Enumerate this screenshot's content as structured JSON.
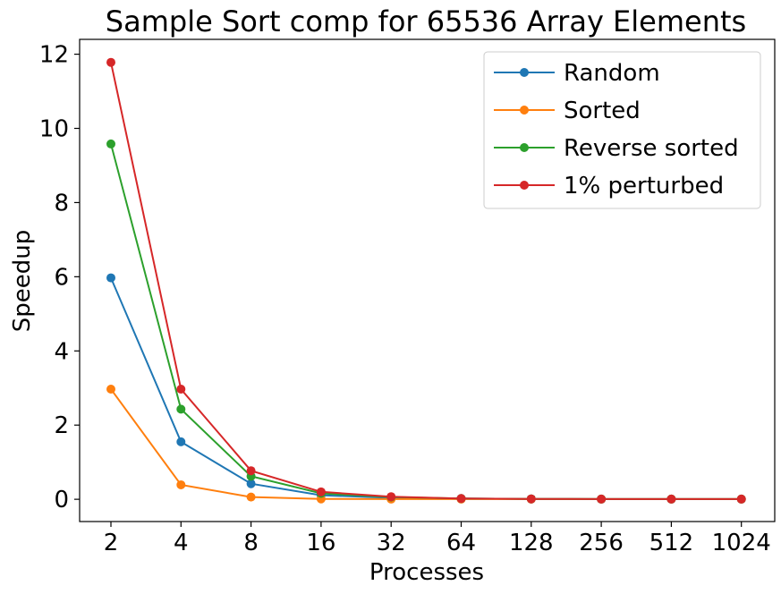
{
  "chart_data": {
    "type": "line",
    "title": "Sample Sort comp for 65536 Array Elements",
    "xlabel": "Processes",
    "ylabel": "Speedup",
    "categories": [
      "2",
      "4",
      "8",
      "16",
      "32",
      "64",
      "128",
      "256",
      "512",
      "1024"
    ],
    "yticks": [
      "0",
      "2",
      "4",
      "6",
      "8",
      "10",
      "12"
    ],
    "ylim": [
      -0.6,
      12.4
    ],
    "grid": false,
    "legend_position": "top-right",
    "series": [
      {
        "name": "Random",
        "color": "#1f77b4",
        "values": [
          5.97,
          1.55,
          0.42,
          0.11,
          0.04,
          0.02,
          0.01,
          0.005,
          0.005,
          0.005
        ]
      },
      {
        "name": "Sorted",
        "color": "#ff7f0e",
        "values": [
          2.97,
          0.39,
          0.06,
          0.01,
          0.005,
          0.005,
          0.005,
          0.005,
          0.005,
          0.005
        ]
      },
      {
        "name": "Reverse sorted",
        "color": "#2ca02c",
        "values": [
          9.58,
          2.43,
          0.62,
          0.16,
          0.06,
          0.02,
          0.01,
          0.005,
          0.005,
          0.005
        ]
      },
      {
        "name": "1% perturbed",
        "color": "#d62728",
        "values": [
          11.78,
          2.97,
          0.77,
          0.2,
          0.07,
          0.02,
          0.01,
          0.005,
          0.005,
          0.005
        ]
      }
    ]
  }
}
